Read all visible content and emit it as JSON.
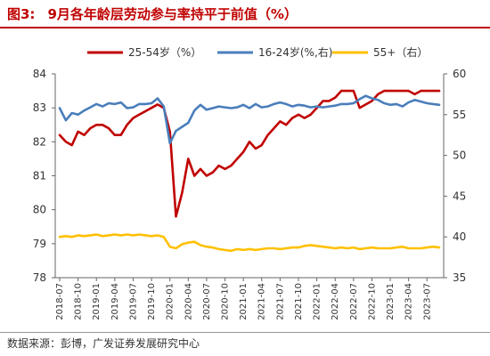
{
  "figure": {
    "label": "图3:",
    "title": "9月各年龄层劳动参与率持平于前值（%）",
    "source": "数据来源：彭博，广发证券发展研究中心"
  },
  "chart_data": {
    "type": "line",
    "x": [
      "2018-07",
      "2018-08",
      "2018-09",
      "2018-10",
      "2018-11",
      "2018-12",
      "2019-01",
      "2019-02",
      "2019-03",
      "2019-04",
      "2019-05",
      "2019-06",
      "2019-07",
      "2019-08",
      "2019-09",
      "2019-10",
      "2019-11",
      "2019-12",
      "2020-01",
      "2020-02",
      "2020-03",
      "2020-04",
      "2020-05",
      "2020-06",
      "2020-07",
      "2020-08",
      "2020-09",
      "2020-10",
      "2020-11",
      "2020-12",
      "2021-01",
      "2021-02",
      "2021-03",
      "2021-04",
      "2021-05",
      "2021-06",
      "2021-07",
      "2021-08",
      "2021-09",
      "2021-10",
      "2021-11",
      "2021-12",
      "2022-01",
      "2022-02",
      "2022-03",
      "2022-04",
      "2022-05",
      "2022-06",
      "2022-07",
      "2022-08",
      "2022-09",
      "2022-10",
      "2022-11",
      "2022-12",
      "2023-01",
      "2023-02",
      "2023-03",
      "2023-04",
      "2023-05",
      "2023-06",
      "2023-07",
      "2023-08",
      "2023-09"
    ],
    "x_tick_labels": [
      "2018-07",
      "2018-10",
      "2019-01",
      "2019-04",
      "2019-07",
      "2019-10",
      "2020-01",
      "2020-04",
      "2020-07",
      "2020-10",
      "2021-01",
      "2021-04",
      "2021-07",
      "2021-10",
      "2022-01",
      "2022-04",
      "2022-07",
      "2022-10",
      "2023-01",
      "2023-04",
      "2023-07"
    ],
    "y_left": {
      "min": 78,
      "max": 84,
      "ticks": [
        78,
        79,
        80,
        81,
        82,
        83,
        84
      ]
    },
    "y_right": {
      "min": 35,
      "max": 60,
      "ticks": [
        35,
        40,
        45,
        50,
        55,
        60
      ]
    },
    "legend_position": "top",
    "grid": false,
    "series": [
      {
        "name": "25-54岁（%）",
        "axis": "left",
        "color": "#c00000",
        "values": [
          82.2,
          82.0,
          81.9,
          82.3,
          82.2,
          82.4,
          82.5,
          82.5,
          82.4,
          82.2,
          82.2,
          82.5,
          82.7,
          82.8,
          82.9,
          83.0,
          83.1,
          83.0,
          82.3,
          79.8,
          80.5,
          81.5,
          81.0,
          81.2,
          81.0,
          81.1,
          81.3,
          81.2,
          81.3,
          81.5,
          81.7,
          82.0,
          81.8,
          81.9,
          82.2,
          82.4,
          82.6,
          82.5,
          82.7,
          82.8,
          82.7,
          82.8,
          83.0,
          83.2,
          83.2,
          83.3,
          83.5,
          83.5,
          83.5,
          83.0,
          83.1,
          83.2,
          83.4,
          83.5,
          83.5,
          83.5,
          83.5,
          83.5,
          83.4,
          83.5,
          83.5,
          83.5,
          83.5
        ]
      },
      {
        "name": "16-24岁(%,右)",
        "axis": "right",
        "color": "#4a7ebb",
        "values": [
          55.8,
          54.3,
          55.2,
          55.0,
          55.5,
          55.9,
          56.3,
          56.0,
          56.4,
          56.3,
          56.5,
          55.8,
          55.9,
          56.3,
          56.3,
          56.4,
          57.0,
          56.0,
          51.5,
          53.0,
          53.5,
          54.0,
          55.5,
          56.2,
          55.6,
          55.8,
          56.0,
          55.9,
          55.8,
          55.9,
          56.2,
          55.8,
          56.3,
          55.9,
          56.0,
          56.3,
          56.5,
          56.3,
          56.0,
          56.2,
          56.1,
          55.9,
          56.0,
          55.9,
          56.0,
          56.1,
          56.3,
          56.3,
          56.4,
          56.9,
          57.3,
          57.0,
          56.8,
          56.4,
          56.2,
          56.3,
          56.0,
          56.5,
          56.8,
          56.6,
          56.4,
          56.3,
          56.2
        ]
      },
      {
        "name": "55+（右）",
        "axis": "right",
        "color": "#ffc000",
        "values": [
          40.0,
          40.1,
          40.0,
          40.2,
          40.1,
          40.2,
          40.3,
          40.1,
          40.2,
          40.3,
          40.2,
          40.3,
          40.2,
          40.3,
          40.2,
          40.1,
          40.2,
          40.0,
          38.8,
          38.6,
          39.1,
          39.3,
          39.4,
          39.0,
          38.8,
          38.7,
          38.5,
          38.4,
          38.3,
          38.5,
          38.4,
          38.5,
          38.4,
          38.5,
          38.6,
          38.6,
          38.5,
          38.6,
          38.7,
          38.7,
          38.9,
          39.0,
          38.9,
          38.8,
          38.7,
          38.6,
          38.7,
          38.6,
          38.7,
          38.5,
          38.6,
          38.7,
          38.6,
          38.6,
          38.6,
          38.7,
          38.8,
          38.6,
          38.6,
          38.6,
          38.7,
          38.8,
          38.7
        ]
      }
    ]
  }
}
